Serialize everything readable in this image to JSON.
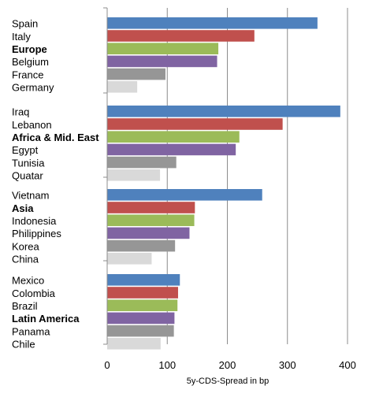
{
  "chart_data": {
    "type": "bar",
    "orientation": "horizontal",
    "xlabel": "5y-CDS-Spread in bp",
    "xlim": [
      0,
      400
    ],
    "xticks": [
      0,
      100,
      200,
      300,
      400
    ],
    "grid": true,
    "groups": [
      {
        "items": [
          {
            "label": "Spain",
            "value": 350,
            "color": "#4F81BD",
            "bold": false
          },
          {
            "label": "Italy",
            "value": 245,
            "color": "#C0504D",
            "bold": false
          },
          {
            "label": "Europe",
            "value": 185,
            "color": "#9BBB59",
            "bold": true
          },
          {
            "label": "Belgium",
            "value": 183,
            "color": "#8064A2",
            "bold": false
          },
          {
            "label": "France",
            "value": 97,
            "color": "#969696",
            "bold": false
          },
          {
            "label": "Germany",
            "value": 50,
            "color": "#D9D9D9",
            "bold": false
          }
        ]
      },
      {
        "items": [
          {
            "label": "Iraq",
            "value": 388,
            "color": "#4F81BD",
            "bold": false
          },
          {
            "label": "Lebanon",
            "value": 292,
            "color": "#C0504D",
            "bold": false
          },
          {
            "label": "Africa & Mid. East",
            "value": 220,
            "color": "#9BBB59",
            "bold": true
          },
          {
            "label": "Egypt",
            "value": 214,
            "color": "#8064A2",
            "bold": false
          },
          {
            "label": "Tunisia",
            "value": 115,
            "color": "#969696",
            "bold": false
          },
          {
            "label": "Quatar",
            "value": 88,
            "color": "#D9D9D9",
            "bold": false
          }
        ]
      },
      {
        "items": [
          {
            "label": "Vietnam",
            "value": 258,
            "color": "#4F81BD",
            "bold": false
          },
          {
            "label": "Asia",
            "value": 146,
            "color": "#C0504D",
            "bold": true
          },
          {
            "label": "Indonesia",
            "value": 145,
            "color": "#9BBB59",
            "bold": false
          },
          {
            "label": "Philippines",
            "value": 137,
            "color": "#8064A2",
            "bold": false
          },
          {
            "label": "Korea",
            "value": 113,
            "color": "#969696",
            "bold": false
          },
          {
            "label": "China",
            "value": 74,
            "color": "#D9D9D9",
            "bold": false
          }
        ]
      },
      {
        "items": [
          {
            "label": "Mexico",
            "value": 121,
            "color": "#4F81BD",
            "bold": false
          },
          {
            "label": "Colombia",
            "value": 118,
            "color": "#C0504D",
            "bold": false
          },
          {
            "label": "Brazil",
            "value": 117,
            "color": "#9BBB59",
            "bold": false
          },
          {
            "label": "Latin America",
            "value": 112,
            "color": "#8064A2",
            "bold": true
          },
          {
            "label": "Panama",
            "value": 111,
            "color": "#969696",
            "bold": false
          },
          {
            "label": "Chile",
            "value": 89,
            "color": "#D9D9D9",
            "bold": false
          }
        ]
      }
    ]
  }
}
